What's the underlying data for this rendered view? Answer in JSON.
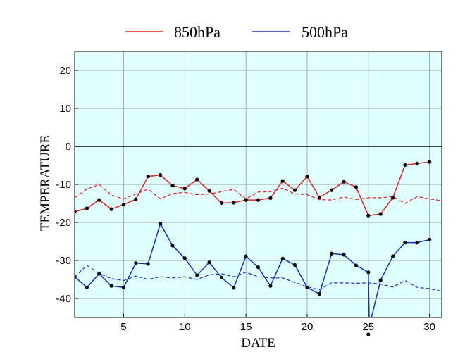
{
  "chart_data": {
    "type": "line",
    "xlabel": "DATE",
    "ylabel": "TEMPERATURE",
    "xlim": [
      1,
      31
    ],
    "ylim": [
      -45,
      25
    ],
    "xticks": [
      5,
      10,
      15,
      20,
      25,
      30
    ],
    "yticks": [
      20,
      10,
      0,
      -10,
      -20,
      -30,
      -40
    ],
    "grid": true,
    "zero_line": true,
    "background_color": "#e0ffff",
    "legend_position": "top",
    "series": [
      {
        "name": "850hPa",
        "color": "#dd2222",
        "style": "solid",
        "markers": true,
        "x": [
          1,
          2,
          3,
          4,
          5,
          6,
          7,
          8,
          9,
          10,
          11,
          12,
          13,
          14,
          15,
          16,
          17,
          18,
          19,
          20,
          21,
          22,
          23,
          24,
          25,
          26,
          27,
          28,
          29,
          30
        ],
        "values": [
          -17.2,
          -16.3,
          -14.1,
          -16.5,
          -15.3,
          -13.9,
          -7.9,
          -7.5,
          -10.3,
          -11.1,
          -8.7,
          -11.7,
          -14.9,
          -14.8,
          -14.1,
          -14.1,
          -13.6,
          -9.1,
          -11.5,
          -7.9,
          -13.4,
          -11.5,
          -9.3,
          -10.7,
          -18.2,
          -17.8,
          -13.5,
          -4.9,
          -4.5,
          -4.1
        ]
      },
      {
        "name": "",
        "color": "#dd2222",
        "style": "dashed",
        "markers": false,
        "x": [
          1,
          2,
          3,
          4,
          5,
          6,
          7,
          8,
          9,
          10,
          11,
          12,
          13,
          14,
          15,
          16,
          17,
          18,
          19,
          20,
          21,
          22,
          23,
          24,
          25,
          26,
          27,
          28,
          29,
          30,
          31
        ],
        "values": [
          -13.5,
          -11.2,
          -10.0,
          -12.8,
          -13.8,
          -12.5,
          -11.3,
          -13.8,
          -12.4,
          -12.1,
          -12.7,
          -12.5,
          -11.9,
          -11.3,
          -13.8,
          -12.0,
          -11.9,
          -11.0,
          -12.5,
          -12.7,
          -14.0,
          -14.1,
          -13.3,
          -14.0,
          -13.5,
          -13.5,
          -13.2,
          -15.0,
          -13.2,
          -13.8,
          -14.3
        ]
      },
      {
        "name": "500hPa",
        "color": "#1133bb",
        "style": "solid",
        "markers": true,
        "x": [
          1,
          2,
          3,
          4,
          5,
          6,
          7,
          8,
          9,
          10,
          11,
          12,
          13,
          14,
          15,
          16,
          17,
          18,
          19,
          20,
          21,
          22,
          23,
          24,
          25,
          26,
          27,
          28,
          29,
          30
        ],
        "values": [
          -34.3,
          -37.1,
          -33.5,
          -36.7,
          -37.1,
          -30.7,
          -30.9,
          -20.3,
          -26.1,
          -29.4,
          -33.9,
          -30.5,
          -34.5,
          -37.2,
          -28.9,
          -31.8,
          -36.7,
          -29.5,
          -31.2,
          -37.1,
          -38.8,
          -28.2,
          -28.5,
          -31.3,
          -33.1,
          -35.2,
          -28.9,
          -25.3,
          -25.3,
          -24.5
        ]
      },
      {
        "name": "",
        "color": "#1133bb",
        "style": "dashed",
        "markers": false,
        "x": [
          1,
          2,
          3,
          4,
          5,
          6,
          7,
          8,
          9,
          10,
          11,
          12,
          13,
          14,
          15,
          16,
          17,
          18,
          19,
          20,
          21,
          22,
          23,
          24,
          25,
          26,
          27,
          28,
          29,
          30,
          31
        ],
        "values": [
          -34.3,
          -31.3,
          -33.4,
          -34.8,
          -35.3,
          -34.1,
          -35.0,
          -34.3,
          -34.6,
          -34.3,
          -35.0,
          -33.8,
          -33.5,
          -34.3,
          -33.1,
          -34.3,
          -34.6,
          -34.6,
          -35.8,
          -36.9,
          -37.7,
          -35.9,
          -35.9,
          -36.0,
          -35.9,
          -36.2,
          -37.0,
          -35.3,
          -37.1,
          -37.4,
          -38.1
        ]
      }
    ],
    "off_chart_point": {
      "series": "500hPa",
      "x": 25.08,
      "value": -47.3
    }
  }
}
